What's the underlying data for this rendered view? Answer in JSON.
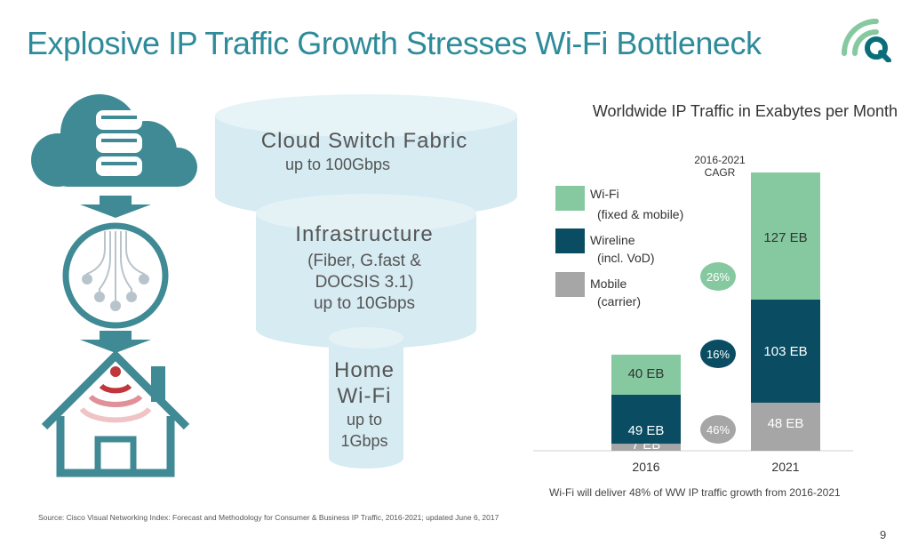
{
  "title": "Explosive IP Traffic Growth Stresses Wi-Fi Bottleneck",
  "funnel": {
    "cloud_title": "Cloud Switch Fabric",
    "cloud_sub": "up to 100Gbps",
    "infra_title": "Infrastructure",
    "infra_l1": "(Fiber, G.fast &",
    "infra_l2": "DOCSIS 3.1)",
    "infra_l3": "up to 10Gbps",
    "home_title": "Home",
    "home_l2": "Wi-Fi",
    "home_l3": "up to",
    "home_l4": "1Gbps"
  },
  "icons": [
    "cloud-database-icon",
    "arrow-down-icon",
    "network-hub-icon",
    "home-wifi-icon",
    "company-logo-icon"
  ],
  "colors": {
    "title": "#2e8b9a",
    "wifi": "#86c9a0",
    "wireline": "#0a4d63",
    "mobile": "#a6a6a6",
    "funnel": "#d6ebf2",
    "icon": "#3f8a94",
    "wifi_red": "#c0363c"
  },
  "chart_data": {
    "type": "bar",
    "title": "Worldwide IP Traffic in Exabytes per Month",
    "categories": [
      "2016",
      "2021"
    ],
    "stacked": true,
    "series": [
      {
        "name": "Mobile (carrier)",
        "values": [
          7,
          48
        ],
        "labels": [
          "7 EB",
          "48 EB"
        ],
        "color": "#a6a6a6"
      },
      {
        "name": "Wireline (incl. VoD)",
        "values": [
          49,
          103
        ],
        "labels": [
          "49 EB",
          "103 EB"
        ],
        "color": "#0a4d63"
      },
      {
        "name": "Wi-Fi (fixed & mobile)",
        "values": [
          40,
          127
        ],
        "labels": [
          "40 EB",
          "127 EB"
        ],
        "color": "#86c9a0"
      }
    ],
    "cagr_header": [
      "2016-2021",
      "CAGR"
    ],
    "cagr": [
      {
        "series": "Wi-Fi",
        "value": "26%"
      },
      {
        "series": "Wireline",
        "value": "16%"
      },
      {
        "series": "Mobile",
        "value": "46%"
      }
    ],
    "legend": [
      {
        "label1": "Wi-Fi",
        "label2": "(fixed & mobile)"
      },
      {
        "label1": "Wireline",
        "label2": "(incl. VoD)"
      },
      {
        "label1": "Mobile",
        "label2": "(carrier)"
      }
    ],
    "legend_position": "top-left",
    "grid": false
  },
  "footnote": "Wi-Fi will deliver 48% of WW IP traffic growth from 2016-2021",
  "source": "Source: Cisco Visual Networking Index: Forecast and Methodology for Consumer & Business IP Traffic, 2016-2021; updated June 6, 2017",
  "page_number": "9"
}
